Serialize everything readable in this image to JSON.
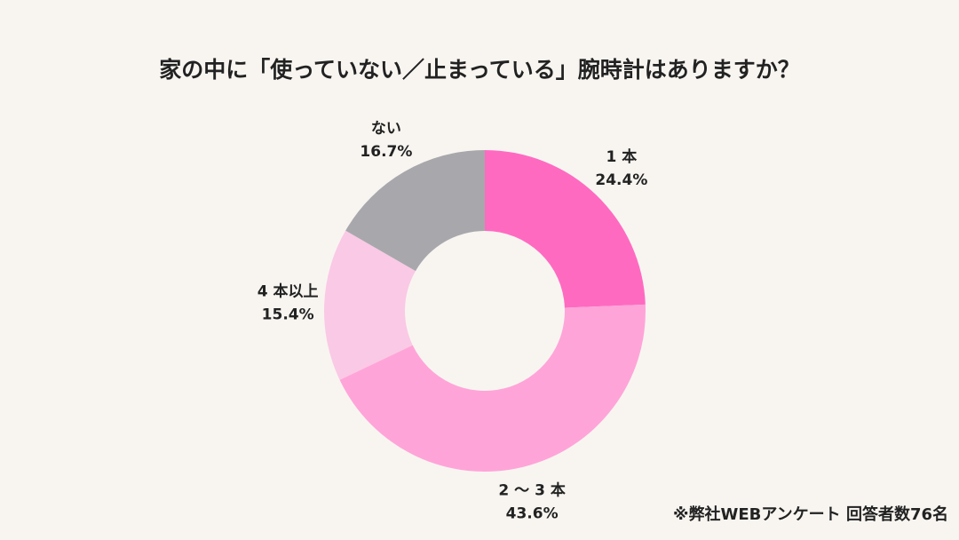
{
  "chart_data": {
    "type": "donut",
    "title": "家の中に「使っていない／止まっている」腕時計はありますか？",
    "categories": [
      "1 本",
      "2 〜 3 本",
      "4 本以上",
      "ない"
    ],
    "values": [
      24.4,
      43.6,
      15.4,
      16.7
    ],
    "value_labels": [
      "24.4%",
      "43.6%",
      "15.4%",
      "16.7%"
    ],
    "colors": [
      "#ff6ac1",
      "#ffa4d8",
      "#fac9e5",
      "#a8a8ac"
    ],
    "note": "※弊社WEBアンケート 回答者数76名"
  }
}
